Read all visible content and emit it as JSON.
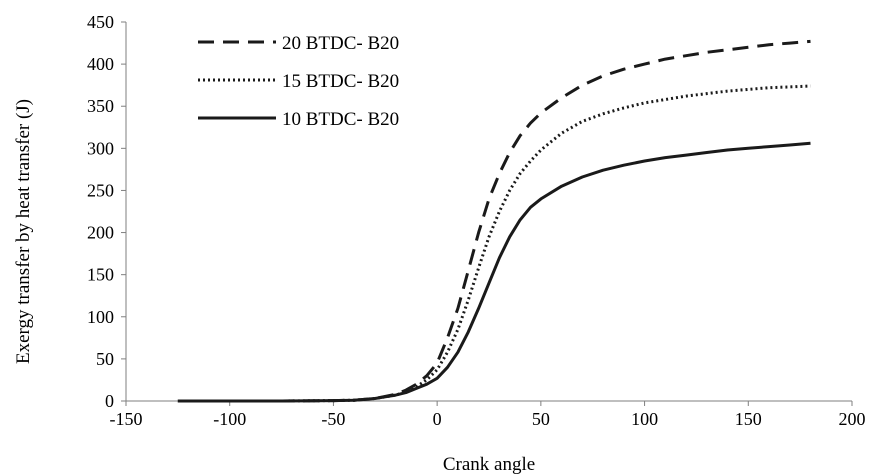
{
  "chart_data": {
    "type": "line",
    "xlabel": "Crank angle",
    "ylabel": "Exergy transfer  by heat transfer  (J)",
    "xlim": [
      -150,
      200
    ],
    "ylim": [
      0,
      450
    ],
    "x_ticks": [
      -150,
      -100,
      -50,
      0,
      50,
      100,
      150,
      200
    ],
    "y_ticks": [
      0,
      50,
      100,
      150,
      200,
      250,
      300,
      350,
      400,
      450
    ],
    "grid": false,
    "legend_position": "top-left",
    "series": [
      {
        "name": "20 BTDC- B20",
        "dash": "long-dash",
        "x": [
          -125,
          -100,
          -75,
          -50,
          -40,
          -30,
          -20,
          -15,
          -10,
          -5,
          0,
          5,
          10,
          15,
          20,
          25,
          30,
          35,
          40,
          45,
          50,
          60,
          70,
          80,
          90,
          100,
          110,
          120,
          130,
          140,
          150,
          160,
          170,
          180
        ],
        "y": [
          0,
          0,
          0,
          0.5,
          1,
          3,
          8,
          13,
          20,
          30,
          45,
          75,
          110,
          155,
          200,
          240,
          270,
          295,
          315,
          330,
          342,
          360,
          375,
          386,
          394,
          400,
          406,
          410,
          414,
          417,
          420,
          423,
          425,
          427
        ]
      },
      {
        "name": "15 BTDC- B20",
        "dash": "dotted",
        "x": [
          -125,
          -100,
          -75,
          -50,
          -40,
          -30,
          -20,
          -15,
          -10,
          -5,
          0,
          5,
          10,
          15,
          20,
          25,
          30,
          35,
          40,
          45,
          50,
          60,
          70,
          80,
          90,
          100,
          110,
          120,
          130,
          140,
          150,
          160,
          170,
          180
        ],
        "y": [
          0,
          0,
          0,
          0.5,
          1,
          3,
          7,
          11,
          17,
          25,
          37,
          58,
          85,
          120,
          158,
          195,
          225,
          250,
          270,
          285,
          298,
          318,
          332,
          341,
          348,
          354,
          358,
          362,
          365,
          368,
          370,
          372,
          373,
          374
        ]
      },
      {
        "name": "10 BTDC- B20",
        "dash": "solid",
        "x": [
          -125,
          -100,
          -75,
          -50,
          -40,
          -30,
          -20,
          -15,
          -10,
          -5,
          0,
          5,
          10,
          15,
          20,
          25,
          30,
          35,
          40,
          45,
          50,
          60,
          70,
          80,
          90,
          100,
          110,
          120,
          130,
          140,
          150,
          160,
          170,
          180
        ],
        "y": [
          0,
          0,
          0,
          0.5,
          1,
          3,
          7,
          10,
          15,
          20,
          27,
          40,
          58,
          82,
          110,
          140,
          170,
          195,
          215,
          230,
          240,
          255,
          266,
          274,
          280,
          285,
          289,
          292,
          295,
          298,
          300,
          302,
          304,
          306
        ]
      }
    ]
  }
}
